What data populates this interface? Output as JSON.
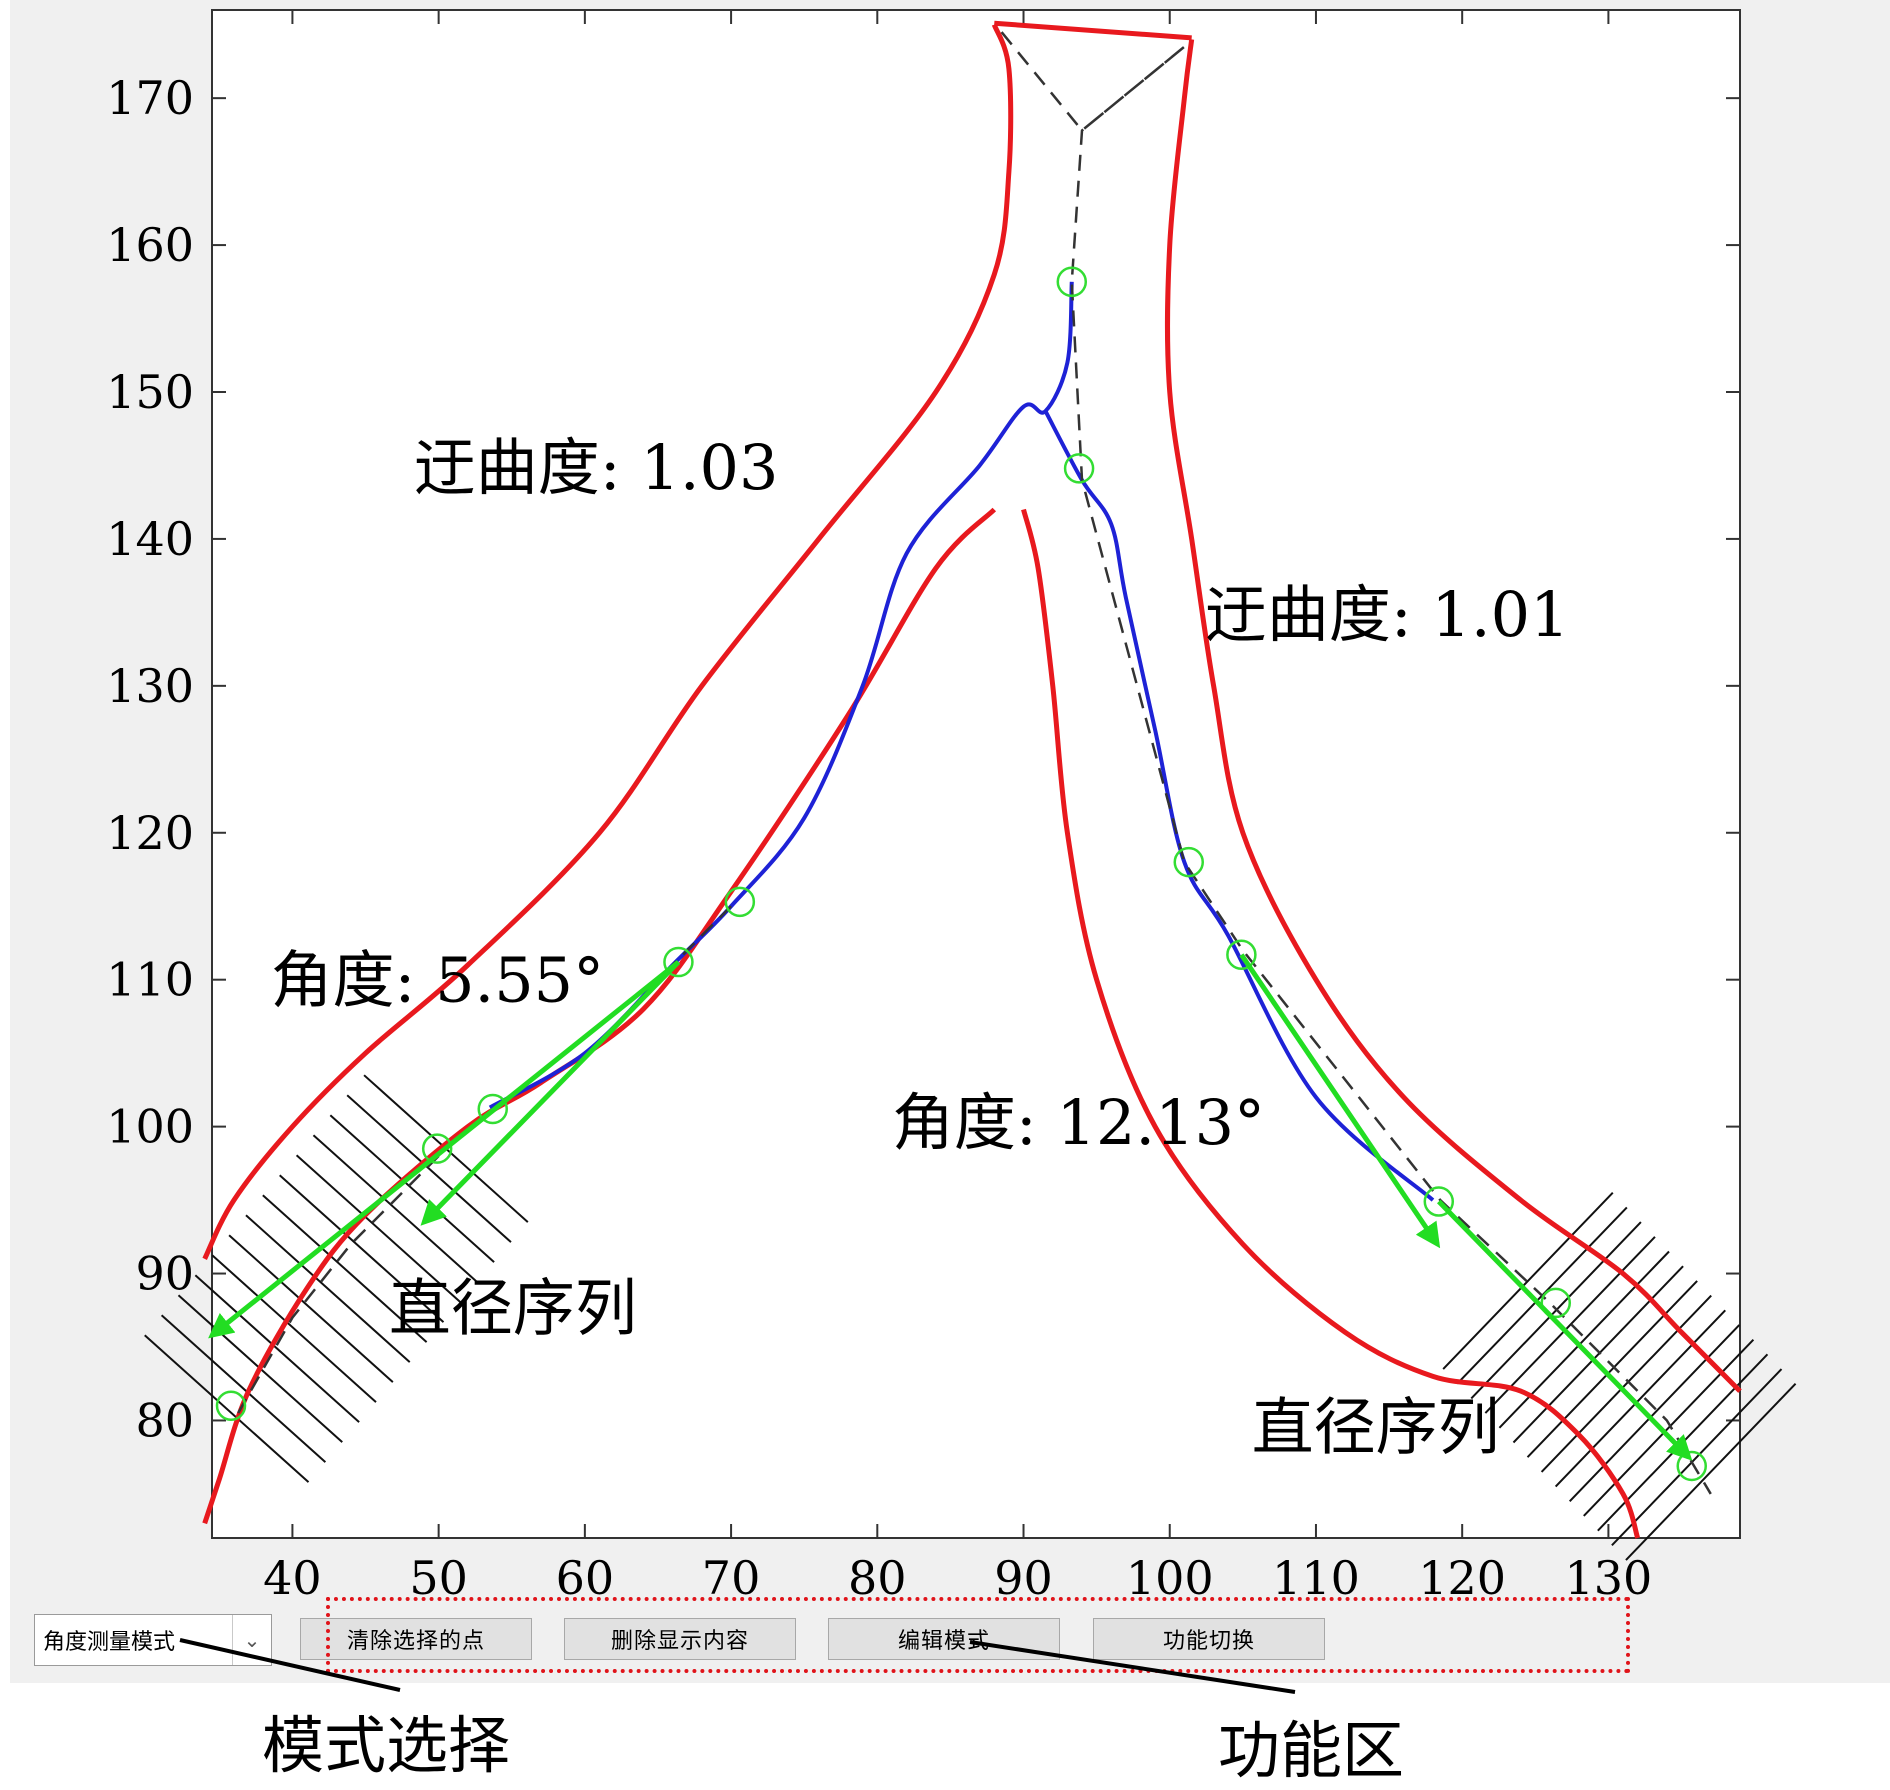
{
  "chart_data": {
    "type": "line",
    "x_ticks": [
      "40",
      "50",
      "60",
      "70",
      "80",
      "90",
      "100",
      "110",
      "120",
      "130"
    ],
    "y_ticks": [
      "80",
      "90",
      "100",
      "110",
      "120",
      "130",
      "140",
      "150",
      "160",
      "170"
    ],
    "xlim": [
      34.5,
      139
    ],
    "ylim": [
      72,
      176
    ],
    "grid": false,
    "colors": {
      "boundary": "#e8191e",
      "centerline": "#1e22d6",
      "skeleton": "#333333",
      "vector": "#22dd22",
      "marker": "#33dd33",
      "hatch": "#111111"
    },
    "series": [
      {
        "role": "outer-left-boundary",
        "points": [
          [
            88,
            175
          ],
          [
            89,
            172
          ],
          [
            89,
            165
          ],
          [
            88,
            158
          ],
          [
            84,
            150
          ],
          [
            76,
            140
          ],
          [
            68,
            130
          ],
          [
            61,
            120
          ],
          [
            52,
            111
          ],
          [
            45,
            105
          ],
          [
            40,
            100
          ],
          [
            36,
            95
          ],
          [
            34,
            91
          ]
        ]
      },
      {
        "role": "outer-right-boundary",
        "points": [
          [
            101.5,
            174
          ],
          [
            101,
            170
          ],
          [
            100,
            160
          ],
          [
            100,
            150
          ],
          [
            101.5,
            140
          ],
          [
            103,
            130
          ],
          [
            105,
            120
          ],
          [
            110,
            110
          ],
          [
            116,
            102
          ],
          [
            124,
            95
          ],
          [
            131,
            90
          ],
          [
            135,
            86
          ],
          [
            139,
            82
          ]
        ]
      },
      {
        "role": "inner-left-boundary",
        "points": [
          [
            88,
            142
          ],
          [
            84,
            138
          ],
          [
            78,
            128
          ],
          [
            70,
            116
          ],
          [
            64,
            108
          ],
          [
            57,
            103
          ],
          [
            52,
            100
          ],
          [
            45,
            94
          ],
          [
            41,
            89
          ],
          [
            37,
            82
          ],
          [
            35,
            76
          ],
          [
            34,
            73
          ]
        ]
      },
      {
        "role": "inner-right-boundary",
        "points": [
          [
            90,
            142
          ],
          [
            91,
            138
          ],
          [
            92,
            130
          ],
          [
            93,
            120
          ],
          [
            95,
            110
          ],
          [
            99,
            100
          ],
          [
            105,
            92
          ],
          [
            112,
            86
          ],
          [
            118,
            83
          ],
          [
            124,
            82
          ],
          [
            128,
            79
          ],
          [
            131,
            75
          ],
          [
            132,
            72
          ]
        ]
      },
      {
        "role": "top-cap",
        "points": [
          [
            88,
            175.1
          ],
          [
            101.5,
            174.1
          ]
        ]
      },
      {
        "role": "centerline-left",
        "points": [
          [
            53.5,
            101.3
          ],
          [
            60,
            105
          ],
          [
            66,
            111
          ],
          [
            70,
            115
          ],
          [
            75,
            121
          ],
          [
            79,
            130
          ],
          [
            82,
            139
          ],
          [
            87,
            145
          ],
          [
            90,
            149
          ],
          [
            91.5,
            148.7
          ],
          [
            93,
            152
          ],
          [
            93.3,
            157.5
          ]
        ]
      },
      {
        "role": "centerline-right",
        "points": [
          [
            91.5,
            148.7
          ],
          [
            94,
            144
          ],
          [
            96,
            141
          ],
          [
            97,
            136
          ],
          [
            99,
            127
          ],
          [
            101,
            118
          ],
          [
            104,
            113
          ],
          [
            110,
            102
          ],
          [
            118,
            95
          ]
        ]
      },
      {
        "role": "skeleton-dashed",
        "points": [
          [
            88.5,
            174.5
          ],
          [
            94,
            167.8
          ],
          [
            101,
            173.5
          ],
          [
            94,
            167.8
          ],
          [
            93.3,
            157.5
          ],
          [
            94,
            144
          ],
          [
            101,
            118
          ],
          [
            105,
            112
          ],
          [
            118.5,
            95
          ],
          [
            126,
            88
          ],
          [
            134,
            80
          ],
          [
            137,
            75
          ]
        ]
      },
      {
        "role": "skeleton-dashed-left",
        "points": [
          [
            70,
            115
          ],
          [
            66,
            111
          ]
        ]
      },
      {
        "role": "skeleton-dashed-tail",
        "points": [
          [
            50,
            98
          ],
          [
            44,
            92
          ],
          [
            40,
            87
          ],
          [
            36,
            80
          ]
        ]
      }
    ],
    "markers": [
      [
        93.3,
        157.5
      ],
      [
        93.8,
        144.8
      ],
      [
        70.6,
        115.3
      ],
      [
        66.4,
        111.2
      ],
      [
        53.7,
        101.2
      ],
      [
        49.9,
        98.5
      ],
      [
        35.8,
        81.0
      ],
      [
        101.3,
        118.0
      ],
      [
        104.9,
        111.7
      ],
      [
        118.4,
        94.9
      ],
      [
        126.4,
        88.0
      ],
      [
        135.7,
        76.9
      ]
    ],
    "vectors": [
      {
        "from": [
          66.4,
          111.2
        ],
        "to": [
          34.5,
          85.8
        ]
      },
      {
        "from": [
          66.4,
          111.2
        ],
        "to": [
          49,
          93.5
        ]
      },
      {
        "from": [
          104.9,
          111.7
        ],
        "to": [
          118.3,
          92
        ]
      },
      {
        "from": [
          118.4,
          94.9
        ],
        "to": [
          135.5,
          77.5
        ]
      }
    ],
    "annotations": {
      "tortuosity_left": "迂曲度: 1.03",
      "tortuosity_right": "迂曲度: 1.01",
      "angle_left": "角度: 5.55°",
      "angle_right": "角度: 12.13°",
      "diameter_left": "直径序列",
      "diameter_right": "直径序列"
    }
  },
  "controls": {
    "mode_select_value": "角度测量模式",
    "buttons": [
      "清除选择的点",
      "删除显示内容",
      "编辑模式",
      "功能切换"
    ]
  },
  "callouts": {
    "mode_label": "模式选择",
    "function_label": "功能区"
  }
}
